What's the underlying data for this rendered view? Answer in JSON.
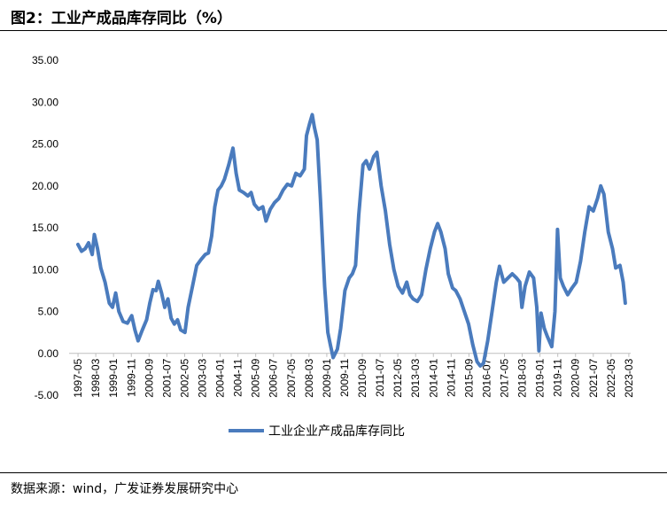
{
  "header": {
    "title": "图2：工业产成品库存同比（%）"
  },
  "footer": {
    "source": "数据来源：wind，广发证券发展研究中心"
  },
  "chart_data": {
    "type": "line",
    "title": "图2：工业产成品库存同比（%）",
    "xlabel": "",
    "ylabel": "",
    "ylim": [
      -5,
      35
    ],
    "yticks": [
      "35.00",
      "30.00",
      "25.00",
      "20.00",
      "15.00",
      "10.00",
      "5.00",
      "0.00",
      "-5.00"
    ],
    "xticks": [
      "1997-05",
      "1998-03",
      "1999-01",
      "1999-11",
      "2000-09",
      "2001-07",
      "2002-05",
      "2003-03",
      "2004-01",
      "2004-11",
      "2005-09",
      "2006-07",
      "2007-05",
      "2008-03",
      "2009-01",
      "2009-11",
      "2010-09",
      "2011-07",
      "2012-05",
      "2013-03",
      "2014-01",
      "2014-11",
      "2015-09",
      "2016-07",
      "2017-05",
      "2018-03",
      "2019-01",
      "2019-11",
      "2020-09",
      "2021-07",
      "2022-05",
      "2023-03"
    ],
    "grid": false,
    "legend_position": "bottom",
    "series": [
      {
        "name": "工业企业产成品库存同比",
        "color": "#4a7bbd",
        "points": [
          [
            1997.33,
            13.0
          ],
          [
            1997.5,
            12.2
          ],
          [
            1997.67,
            12.5
          ],
          [
            1997.83,
            13.2
          ],
          [
            1998.0,
            11.8
          ],
          [
            1998.1,
            14.2
          ],
          [
            1998.25,
            12.5
          ],
          [
            1998.4,
            10.2
          ],
          [
            1998.6,
            8.5
          ],
          [
            1998.8,
            6.0
          ],
          [
            1998.95,
            5.5
          ],
          [
            1999.1,
            7.2
          ],
          [
            1999.25,
            5.0
          ],
          [
            1999.45,
            3.8
          ],
          [
            1999.65,
            3.6
          ],
          [
            1999.85,
            4.5
          ],
          [
            2000.0,
            2.8
          ],
          [
            2000.15,
            1.5
          ],
          [
            2000.35,
            2.8
          ],
          [
            2000.55,
            4.0
          ],
          [
            2000.7,
            6.0
          ],
          [
            2000.85,
            7.6
          ],
          [
            2001.0,
            7.5
          ],
          [
            2001.1,
            8.6
          ],
          [
            2001.25,
            7.2
          ],
          [
            2001.4,
            5.5
          ],
          [
            2001.55,
            6.5
          ],
          [
            2001.7,
            4.2
          ],
          [
            2001.85,
            3.5
          ],
          [
            2002.0,
            4.0
          ],
          [
            2002.15,
            2.8
          ],
          [
            2002.35,
            2.5
          ],
          [
            2002.5,
            5.5
          ],
          [
            2002.7,
            8.0
          ],
          [
            2002.9,
            10.5
          ],
          [
            2003.1,
            11.2
          ],
          [
            2003.3,
            11.8
          ],
          [
            2003.45,
            12.0
          ],
          [
            2003.6,
            14.0
          ],
          [
            2003.75,
            17.5
          ],
          [
            2003.9,
            19.5
          ],
          [
            2004.05,
            20.0
          ],
          [
            2004.2,
            20.8
          ],
          [
            2004.4,
            22.5
          ],
          [
            2004.6,
            24.5
          ],
          [
            2004.75,
            21.5
          ],
          [
            2004.9,
            19.5
          ],
          [
            2005.1,
            19.2
          ],
          [
            2005.3,
            18.8
          ],
          [
            2005.45,
            19.2
          ],
          [
            2005.6,
            17.8
          ],
          [
            2005.8,
            17.2
          ],
          [
            2006.0,
            17.5
          ],
          [
            2006.15,
            15.8
          ],
          [
            2006.35,
            17.2
          ],
          [
            2006.55,
            18.0
          ],
          [
            2006.75,
            18.5
          ],
          [
            2006.95,
            19.5
          ],
          [
            2007.15,
            20.2
          ],
          [
            2007.35,
            20.0
          ],
          [
            2007.55,
            21.5
          ],
          [
            2007.75,
            21.2
          ],
          [
            2007.95,
            22.0
          ],
          [
            2008.05,
            26.0
          ],
          [
            2008.2,
            27.5
          ],
          [
            2008.32,
            28.5
          ],
          [
            2008.42,
            27.0
          ],
          [
            2008.55,
            25.5
          ],
          [
            2008.7,
            18.5
          ],
          [
            2008.9,
            8.0
          ],
          [
            2009.05,
            2.5
          ],
          [
            2009.17,
            1.0
          ],
          [
            2009.3,
            -0.5
          ],
          [
            2009.5,
            0.5
          ],
          [
            2009.65,
            3.0
          ],
          [
            2009.85,
            7.5
          ],
          [
            2010.05,
            9.0
          ],
          [
            2010.2,
            9.5
          ],
          [
            2010.35,
            10.5
          ],
          [
            2010.5,
            16.5
          ],
          [
            2010.7,
            22.5
          ],
          [
            2010.85,
            23.0
          ],
          [
            2011.0,
            22.0
          ],
          [
            2011.2,
            23.5
          ],
          [
            2011.35,
            24.0
          ],
          [
            2011.55,
            20.0
          ],
          [
            2011.75,
            17.0
          ],
          [
            2011.95,
            13.0
          ],
          [
            2012.15,
            10.0
          ],
          [
            2012.35,
            8.0
          ],
          [
            2012.55,
            7.2
          ],
          [
            2012.75,
            8.5
          ],
          [
            2012.9,
            7.0
          ],
          [
            2013.05,
            6.5
          ],
          [
            2013.25,
            6.2
          ],
          [
            2013.45,
            7.0
          ],
          [
            2013.65,
            10.0
          ],
          [
            2013.85,
            12.5
          ],
          [
            2014.05,
            14.5
          ],
          [
            2014.2,
            15.5
          ],
          [
            2014.35,
            14.5
          ],
          [
            2014.55,
            12.5
          ],
          [
            2014.7,
            9.5
          ],
          [
            2014.9,
            7.8
          ],
          [
            2015.05,
            7.5
          ],
          [
            2015.25,
            6.5
          ],
          [
            2015.45,
            5.0
          ],
          [
            2015.65,
            3.5
          ],
          [
            2015.85,
            1.0
          ],
          [
            2016.05,
            -1.0
          ],
          [
            2016.2,
            -1.5
          ],
          [
            2016.35,
            -1.2
          ],
          [
            2016.55,
            1.5
          ],
          [
            2016.75,
            5.0
          ],
          [
            2016.95,
            8.5
          ],
          [
            2017.1,
            10.4
          ],
          [
            2017.3,
            8.5
          ],
          [
            2017.5,
            9.0
          ],
          [
            2017.7,
            9.5
          ],
          [
            2017.9,
            9.0
          ],
          [
            2018.05,
            8.5
          ],
          [
            2018.15,
            5.5
          ],
          [
            2018.3,
            8.0
          ],
          [
            2018.5,
            9.7
          ],
          [
            2018.7,
            9.0
          ],
          [
            2018.85,
            5.5
          ],
          [
            2018.95,
            0.3
          ],
          [
            2019.05,
            4.8
          ],
          [
            2019.2,
            3.0
          ],
          [
            2019.35,
            2.0
          ],
          [
            2019.55,
            0.8
          ],
          [
            2019.7,
            5.0
          ],
          [
            2019.82,
            14.8
          ],
          [
            2019.95,
            9.0
          ],
          [
            2020.1,
            8.0
          ],
          [
            2020.3,
            7.0
          ],
          [
            2020.5,
            7.8
          ],
          [
            2020.7,
            8.5
          ],
          [
            2020.9,
            11.0
          ],
          [
            2021.1,
            14.5
          ],
          [
            2021.3,
            17.5
          ],
          [
            2021.5,
            17.0
          ],
          [
            2021.7,
            18.5
          ],
          [
            2021.85,
            20.0
          ],
          [
            2022.0,
            19.0
          ],
          [
            2022.2,
            14.5
          ],
          [
            2022.4,
            12.5
          ],
          [
            2022.55,
            10.2
          ],
          [
            2022.75,
            10.5
          ],
          [
            2022.9,
            8.5
          ],
          [
            2023.0,
            6.0
          ]
        ]
      }
    ]
  }
}
